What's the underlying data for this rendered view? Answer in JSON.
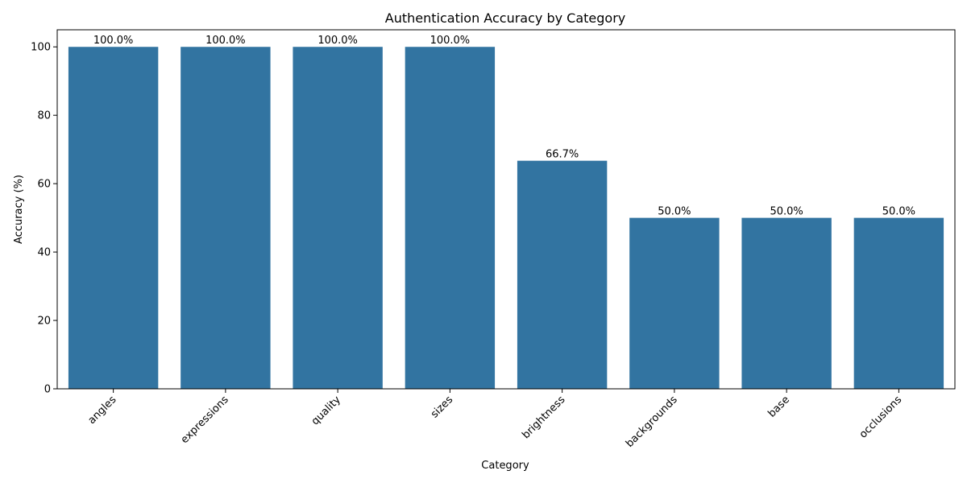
{
  "chart_data": {
    "type": "bar",
    "title": "Authentication Accuracy by Category",
    "xlabel": "Category",
    "ylabel": "Accuracy (%)",
    "categories": [
      "angles",
      "expressions",
      "quality",
      "sizes",
      "brightness",
      "backgrounds",
      "base",
      "occlusions"
    ],
    "values": [
      100.0,
      100.0,
      100.0,
      100.0,
      66.7,
      50.0,
      50.0,
      50.0
    ],
    "value_labels": [
      "100.0%",
      "100.0%",
      "100.0%",
      "100.0%",
      "66.7%",
      "50.0%",
      "50.0%",
      "50.0%"
    ],
    "ylim": [
      0,
      105
    ],
    "yticks": [
      0,
      20,
      40,
      60,
      80,
      100
    ],
    "bar_color": "#3274a1",
    "grid": false,
    "legend": "none",
    "xtick_rotation": 45
  }
}
